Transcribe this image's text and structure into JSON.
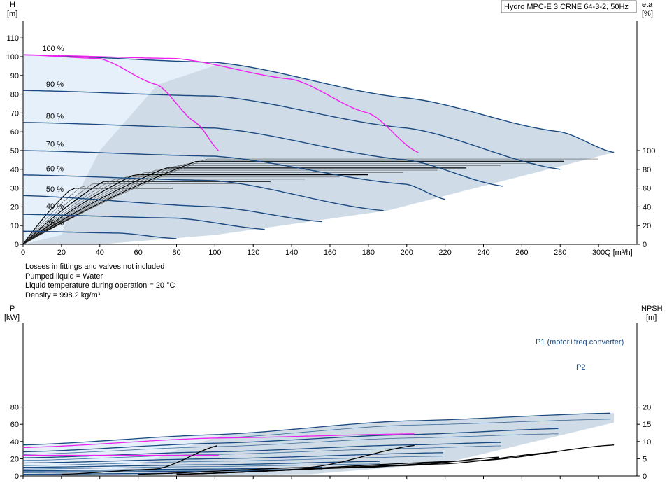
{
  "title": "Hydro MPC-E 3 CRNE 64-3-2, 50Hz",
  "notes": [
    "Losses in fittings and valves not included",
    "Pumped liquid = Water",
    "Liquid temperature during operation = 20 °C",
    "Density = 998.2 kg/m³"
  ],
  "colors": {
    "curve": "#1a4a80",
    "thin": "#000000",
    "highlight": "#ee22ee",
    "fill_main": "#cfdce8",
    "fill_light": "#e6f0fa"
  },
  "chart_data": [
    {
      "type": "line",
      "name": "head",
      "y_left_label_1": "H",
      "y_left_label_2": "[m]",
      "y_right_label_1": "eta",
      "y_right_label_2": "[%]",
      "x_label": "Q [m³/h]",
      "xlim": [
        0,
        320
      ],
      "ylim": [
        0,
        120
      ],
      "eta_lim": [
        0,
        200
      ],
      "x_ticks": [
        "0",
        "20",
        "40",
        "60",
        "80",
        "100",
        "120",
        "140",
        "160",
        "180",
        "200",
        "220",
        "240",
        "260",
        "280",
        "300"
      ],
      "y_ticks": [
        "0",
        "10",
        "20",
        "30",
        "40",
        "50",
        "60",
        "70",
        "80",
        "90",
        "100",
        "110"
      ],
      "eta_ticks": [
        "0",
        "20",
        "40",
        "60",
        "80",
        "100"
      ],
      "speed_labels": [
        {
          "text": "100 %",
          "q": 10,
          "h": 103
        },
        {
          "text": "90 %",
          "q": 12,
          "h": 84
        },
        {
          "text": "80 %",
          "q": 12,
          "h": 67
        },
        {
          "text": "70 %",
          "q": 12,
          "h": 52
        },
        {
          "text": "60 %",
          "q": 12,
          "h": 39
        },
        {
          "text": "50 %",
          "q": 12,
          "h": 28
        },
        {
          "text": "40 %",
          "q": 12,
          "h": 19
        },
        {
          "text": "25 %",
          "q": 12,
          "h": 10
        }
      ],
      "series": [
        {
          "speed": 100,
          "qmax": 308,
          "h": [
            [
              0,
              101
            ],
            [
              100,
              97
            ],
            [
              200,
              78
            ],
            [
              280,
              60
            ],
            [
              308,
              49
            ]
          ]
        },
        {
          "speed": 90,
          "qmax": 280,
          "h": [
            [
              0,
              82
            ],
            [
              100,
              79
            ],
            [
              200,
              62
            ],
            [
              280,
              40
            ]
          ]
        },
        {
          "speed": 80,
          "qmax": 250,
          "h": [
            [
              0,
              65
            ],
            [
              100,
              62
            ],
            [
              200,
              45
            ],
            [
              250,
              31
            ]
          ]
        },
        {
          "speed": 70,
          "qmax": 220,
          "h": [
            [
              0,
              50
            ],
            [
              100,
              47
            ],
            [
              200,
              32
            ],
            [
              220,
              24
            ]
          ]
        },
        {
          "speed": 60,
          "qmax": 188,
          "h": [
            [
              0,
              37
            ],
            [
              100,
              34
            ],
            [
              188,
              18
            ]
          ]
        },
        {
          "speed": 50,
          "qmax": 157,
          "h": [
            [
              0,
              26
            ],
            [
              100,
              20
            ],
            [
              157,
              12
            ]
          ]
        },
        {
          "speed": 40,
          "qmax": 126,
          "h": [
            [
              0,
              16
            ],
            [
              80,
              14
            ],
            [
              126,
              8
            ]
          ]
        },
        {
          "speed": 25,
          "qmax": 80,
          "h": [
            [
              0,
              7
            ],
            [
              50,
              6
            ],
            [
              80,
              3
            ]
          ]
        }
      ],
      "highlight_series": [
        {
          "h": [
            [
              0,
              101
            ],
            [
              40,
              99
            ],
            [
              70,
              85
            ],
            [
              90,
              65
            ],
            [
              103,
              49
            ]
          ]
        },
        {
          "h": [
            [
              0,
              101
            ],
            [
              80,
              99
            ],
            [
              140,
              88
            ],
            [
              180,
              70
            ],
            [
              206,
              49
            ]
          ]
        }
      ]
    },
    {
      "type": "line",
      "name": "power",
      "y_left_label_1": "P",
      "y_left_label_2": "[kW]",
      "y_right_label_1": "NPSH",
      "y_right_label_2": "[m]",
      "xlim": [
        0,
        320
      ],
      "ylim": [
        0,
        90
      ],
      "npsh_lim": [
        0,
        22.5
      ],
      "y_ticks": [
        "0",
        "20",
        "40",
        "60",
        "80"
      ],
      "npsh_ticks": [
        "0",
        "5",
        "10",
        "15",
        "20"
      ],
      "p1_label": "P1 (motor+freq.converter)",
      "p2_label": "P2",
      "p1_series": [
        {
          "qmax": 308,
          "p": [
            [
              0,
              36
            ],
            [
              100,
              48
            ],
            [
              200,
              64
            ],
            [
              308,
              73
            ]
          ]
        },
        {
          "qmax": 280,
          "p": [
            [
              0,
              28
            ],
            [
              100,
              38
            ],
            [
              200,
              48
            ],
            [
              280,
              55
            ]
          ]
        },
        {
          "qmax": 250,
          "p": [
            [
              0,
              21
            ],
            [
              100,
              28
            ],
            [
              200,
              36
            ],
            [
              250,
              39
            ]
          ]
        },
        {
          "qmax": 220,
          "p": [
            [
              0,
              15
            ],
            [
              100,
              20
            ],
            [
              220,
              27
            ]
          ]
        },
        {
          "qmax": 188,
          "p": [
            [
              0,
              10
            ],
            [
              100,
              13
            ],
            [
              188,
              17
            ]
          ]
        },
        {
          "qmax": 157,
          "p": [
            [
              0,
              6
            ],
            [
              100,
              8
            ],
            [
              157,
              10
            ]
          ]
        },
        {
          "qmax": 126,
          "p": [
            [
              0,
              4
            ],
            [
              126,
              6
            ]
          ]
        },
        {
          "qmax": 80,
          "p": [
            [
              0,
              2
            ],
            [
              80,
              3
            ]
          ]
        }
      ],
      "p2_series": [
        {
          "qmax": 308,
          "p": [
            [
              0,
              33
            ],
            [
              100,
              44
            ],
            [
              200,
              59
            ],
            [
              308,
              66
            ]
          ]
        },
        {
          "qmax": 280,
          "p": [
            [
              0,
              25
            ],
            [
              100,
              34
            ],
            [
              200,
              44
            ],
            [
              280,
              49
            ]
          ]
        },
        {
          "qmax": 250,
          "p": [
            [
              0,
              18
            ],
            [
              100,
              25
            ],
            [
              200,
              32
            ],
            [
              250,
              35
            ]
          ]
        },
        {
          "qmax": 220,
          "p": [
            [
              0,
              12
            ],
            [
              100,
              17
            ],
            [
              220,
              23
            ]
          ]
        },
        {
          "qmax": 188,
          "p": [
            [
              0,
              8
            ],
            [
              100,
              11
            ],
            [
              188,
              14
            ]
          ]
        },
        {
          "qmax": 157,
          "p": [
            [
              0,
              5
            ],
            [
              157,
              8
            ]
          ]
        }
      ],
      "highlight_series": [
        {
          "p": [
            [
              0,
              24
            ],
            [
              103,
              24
            ]
          ]
        },
        {
          "p": [
            [
              0,
              33
            ],
            [
              100,
              44
            ],
            [
              206,
              49
            ]
          ]
        }
      ],
      "npsh_series": [
        {
          "qmax": 103,
          "n": [
            [
              20,
              0.5
            ],
            [
              70,
              2
            ],
            [
              103,
              9
            ]
          ]
        },
        {
          "qmax": 206,
          "n": [
            [
              60,
              0.5
            ],
            [
              150,
              2.5
            ],
            [
              206,
              9
            ]
          ]
        },
        {
          "qmax": 220,
          "n": [
            [
              80,
              0.5
            ],
            [
              180,
              2.5
            ],
            [
              220,
              4
            ]
          ]
        },
        {
          "qmax": 250,
          "n": [
            [
              80,
              0.5
            ],
            [
              200,
              3
            ],
            [
              250,
              5.5
            ]
          ]
        },
        {
          "qmax": 280,
          "n": [
            [
              80,
              0.5
            ],
            [
              220,
              3.5
            ],
            [
              280,
              7
            ]
          ]
        },
        {
          "qmax": 308,
          "n": [
            [
              80,
              0.5
            ],
            [
              240,
              4.5
            ],
            [
              308,
              9
            ]
          ]
        }
      ]
    }
  ]
}
